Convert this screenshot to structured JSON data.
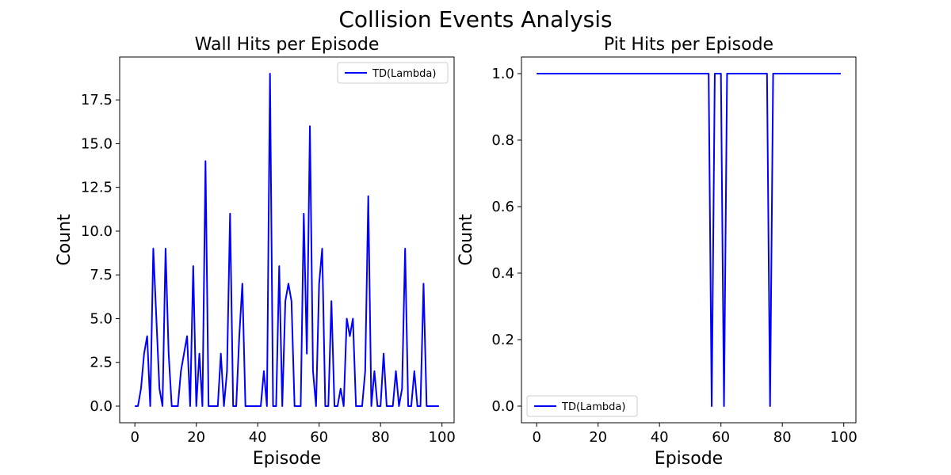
{
  "figure": {
    "suptitle": "Collision Events Analysis"
  },
  "colors": {
    "line": "#0000ff",
    "axes": "#000000",
    "legend_border": "#cccccc"
  },
  "chart_data": [
    {
      "type": "line",
      "title": "Wall Hits per Episode",
      "xlabel": "Episode",
      "ylabel": "Count",
      "xlim": [
        -4.95,
        103.95
      ],
      "ylim": [
        -0.95,
        19.95
      ],
      "xticks": [
        0,
        20,
        40,
        60,
        80,
        100
      ],
      "xticklabels": [
        "0",
        "20",
        "40",
        "60",
        "80",
        "100"
      ],
      "yticks": [
        0,
        2.5,
        5,
        7.5,
        10,
        12.5,
        15,
        17.5
      ],
      "yticklabels": [
        "0.0",
        "2.5",
        "5.0",
        "7.5",
        "10.0",
        "12.5",
        "15.0",
        "17.5"
      ],
      "grid": false,
      "legend_position": "upper right",
      "series": [
        {
          "name": "TD(Lambda)",
          "x": [
            0,
            1,
            2,
            3,
            4,
            5,
            6,
            7,
            8,
            9,
            10,
            11,
            12,
            13,
            14,
            15,
            16,
            17,
            18,
            19,
            20,
            21,
            22,
            23,
            24,
            25,
            26,
            27,
            28,
            29,
            30,
            31,
            32,
            33,
            34,
            35,
            36,
            37,
            38,
            39,
            40,
            41,
            42,
            43,
            44,
            45,
            46,
            47,
            48,
            49,
            50,
            51,
            52,
            53,
            54,
            55,
            56,
            57,
            58,
            59,
            60,
            61,
            62,
            63,
            64,
            65,
            66,
            67,
            68,
            69,
            70,
            71,
            72,
            73,
            74,
            75,
            76,
            77,
            78,
            79,
            80,
            81,
            82,
            83,
            84,
            85,
            86,
            87,
            88,
            89,
            90,
            91,
            92,
            93,
            94,
            95,
            96,
            97,
            98,
            99
          ],
          "y": [
            0,
            0,
            1,
            3,
            4,
            0,
            9,
            5,
            1,
            0,
            9,
            3,
            0,
            0,
            0,
            2,
            3,
            4,
            0,
            8,
            0,
            3,
            0,
            14,
            0,
            0,
            0,
            0,
            3,
            0,
            2,
            11,
            0,
            0,
            4,
            7,
            0,
            0,
            0,
            0,
            0,
            0,
            2,
            0,
            19,
            0,
            0,
            8,
            0,
            6,
            7,
            6,
            0,
            0,
            0,
            11,
            3,
            16,
            2,
            0,
            7,
            9,
            0,
            0,
            6,
            0,
            0,
            1,
            0,
            5,
            4,
            5,
            0,
            0,
            0,
            2,
            12,
            0,
            2,
            0,
            0,
            3,
            0,
            0,
            0,
            2,
            0,
            1,
            9,
            0,
            0,
            2,
            0,
            0,
            7,
            0,
            0,
            0,
            0,
            0
          ]
        }
      ]
    },
    {
      "type": "line",
      "title": "Pit Hits per Episode",
      "xlabel": "Episode",
      "ylabel": "Count",
      "xlim": [
        -4.95,
        103.95
      ],
      "ylim": [
        -0.05,
        1.05
      ],
      "xticks": [
        0,
        20,
        40,
        60,
        80,
        100
      ],
      "xticklabels": [
        "0",
        "20",
        "40",
        "60",
        "80",
        "100"
      ],
      "yticks": [
        0,
        0.2,
        0.4,
        0.6,
        0.8,
        1.0
      ],
      "yticklabels": [
        "0.0",
        "0.2",
        "0.4",
        "0.6",
        "0.8",
        "1.0"
      ],
      "grid": false,
      "legend_position": "lower left",
      "series": [
        {
          "name": "TD(Lambda)",
          "x": [
            0,
            1,
            2,
            3,
            4,
            5,
            6,
            7,
            8,
            9,
            10,
            11,
            12,
            13,
            14,
            15,
            16,
            17,
            18,
            19,
            20,
            21,
            22,
            23,
            24,
            25,
            26,
            27,
            28,
            29,
            30,
            31,
            32,
            33,
            34,
            35,
            36,
            37,
            38,
            39,
            40,
            41,
            42,
            43,
            44,
            45,
            46,
            47,
            48,
            49,
            50,
            51,
            52,
            53,
            54,
            55,
            56,
            57,
            58,
            59,
            60,
            61,
            62,
            63,
            64,
            65,
            66,
            67,
            68,
            69,
            70,
            71,
            72,
            73,
            74,
            75,
            76,
            77,
            78,
            79,
            80,
            81,
            82,
            83,
            84,
            85,
            86,
            87,
            88,
            89,
            90,
            91,
            92,
            93,
            94,
            95,
            96,
            97,
            98,
            99
          ],
          "y": [
            1,
            1,
            1,
            1,
            1,
            1,
            1,
            1,
            1,
            1,
            1,
            1,
            1,
            1,
            1,
            1,
            1,
            1,
            1,
            1,
            1,
            1,
            1,
            1,
            1,
            1,
            1,
            1,
            1,
            1,
            1,
            1,
            1,
            1,
            1,
            1,
            1,
            1,
            1,
            1,
            1,
            1,
            1,
            1,
            1,
            1,
            1,
            1,
            1,
            1,
            1,
            1,
            1,
            1,
            1,
            1,
            1,
            0,
            1,
            1,
            1,
            0,
            1,
            1,
            1,
            1,
            1,
            1,
            1,
            1,
            1,
            1,
            1,
            1,
            1,
            1,
            0,
            1,
            1,
            1,
            1,
            1,
            1,
            1,
            1,
            1,
            1,
            1,
            1,
            1,
            1,
            1,
            1,
            1,
            1,
            1,
            1,
            1,
            1,
            1
          ]
        }
      ]
    }
  ]
}
